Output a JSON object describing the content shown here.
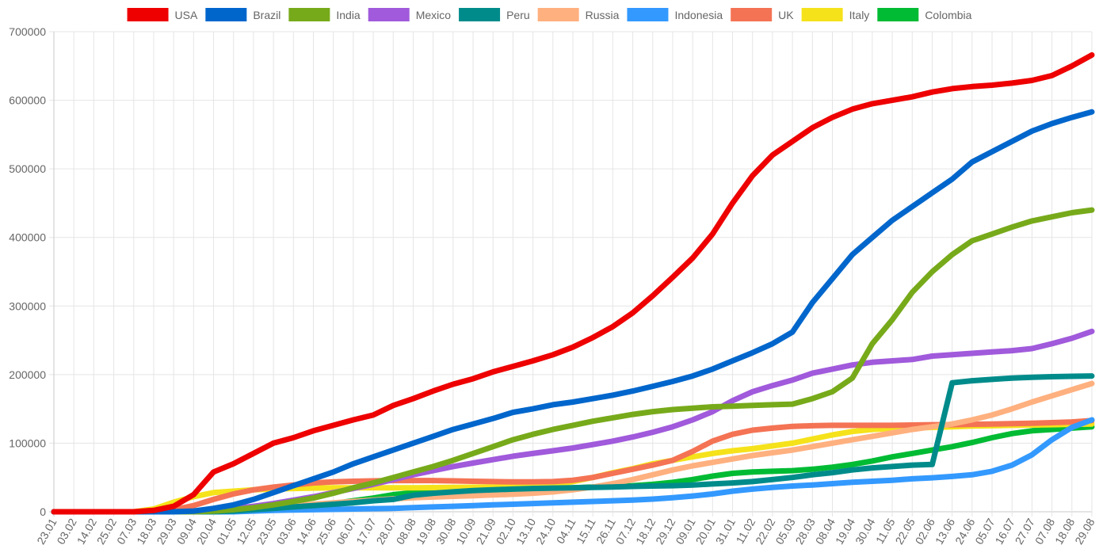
{
  "chart_data": {
    "type": "line",
    "title": "",
    "xlabel": "",
    "ylabel": "",
    "ylim": [
      0,
      700000
    ],
    "yticks": [
      0,
      100000,
      200000,
      300000,
      400000,
      500000,
      600000,
      700000
    ],
    "grid": true,
    "legend_position": "top",
    "x_tick_labels": [
      "23.01",
      "03.02",
      "14.02",
      "25.02",
      "07.03",
      "18.03",
      "29.03",
      "09.04",
      "20.04",
      "01.05",
      "12.05",
      "23.05",
      "03.06",
      "14.06",
      "25.06",
      "06.07",
      "17.07",
      "28.07",
      "08.08",
      "19.08",
      "30.08",
      "10.09",
      "21.09",
      "02.10",
      "13.10",
      "24.10",
      "04.11",
      "15.11",
      "26.11",
      "07.12",
      "18.12",
      "29.12",
      "09.01",
      "20.01",
      "31.01",
      "11.02",
      "22.02",
      "05.03",
      "28.03",
      "08.04",
      "19.04",
      "30.04",
      "11.05",
      "22.05",
      "02.06",
      "13.06",
      "24.06",
      "05.07",
      "16.07",
      "27.07",
      "07.08",
      "18.08",
      "29.08"
    ],
    "series": [
      {
        "name": "USA",
        "color": "#ee0000",
        "values": [
          0,
          0,
          0,
          0,
          0,
          2000,
          8000,
          25000,
          58000,
          70000,
          85000,
          100000,
          108000,
          118000,
          126000,
          134000,
          141000,
          155000,
          165000,
          176000,
          186000,
          194000,
          204000,
          212000,
          220000,
          229000,
          240000,
          254000,
          270000,
          290000,
          315000,
          342000,
          370000,
          405000,
          450000,
          490000,
          520000,
          540000,
          560000,
          575000,
          587000,
          595000,
          600000,
          605000,
          612000,
          617000,
          620000,
          622000,
          625000,
          629000,
          636000,
          650000,
          666000
        ]
      },
      {
        "name": "Brazil",
        "color": "#0066cc",
        "values": [
          0,
          0,
          0,
          0,
          0,
          0,
          0,
          1000,
          5000,
          10000,
          18000,
          28000,
          38000,
          48000,
          58000,
          70000,
          80000,
          90000,
          100000,
          110000,
          120000,
          128000,
          136000,
          145000,
          150000,
          156000,
          160000,
          165000,
          170000,
          176000,
          183000,
          190000,
          198000,
          208000,
          220000,
          232000,
          245000,
          262000,
          305000,
          340000,
          375000,
          400000,
          425000,
          445000,
          465000,
          485000,
          510000,
          525000,
          540000,
          555000,
          566000,
          575000,
          583000
        ]
      },
      {
        "name": "India",
        "color": "#77aa1a",
        "values": [
          0,
          0,
          0,
          0,
          0,
          0,
          0,
          0,
          1000,
          3000,
          6000,
          10000,
          15000,
          20000,
          27000,
          35000,
          42000,
          50000,
          58000,
          66000,
          75000,
          85000,
          95000,
          105000,
          113000,
          120000,
          126000,
          132000,
          137000,
          142000,
          146000,
          149000,
          151000,
          153000,
          154000,
          155000,
          156000,
          157000,
          165000,
          175000,
          195000,
          245000,
          280000,
          320000,
          350000,
          375000,
          395000,
          405000,
          415000,
          424000,
          430000,
          436000,
          440000
        ]
      },
      {
        "name": "Mexico",
        "color": "#a05adb",
        "values": [
          0,
          0,
          0,
          0,
          0,
          0,
          0,
          0,
          2000,
          5000,
          8000,
          12000,
          17000,
          22000,
          28000,
          34000,
          40000,
          47000,
          54000,
          60000,
          66000,
          71000,
          76000,
          81000,
          85000,
          89000,
          93000,
          98000,
          103000,
          109000,
          116000,
          124000,
          134000,
          146000,
          162000,
          175000,
          184000,
          192000,
          202000,
          208000,
          214000,
          218000,
          220000,
          222000,
          227000,
          229000,
          231000,
          233000,
          235000,
          238000,
          245000,
          253000,
          263000
        ]
      },
      {
        "name": "Peru",
        "color": "#008b8b",
        "values": [
          0,
          0,
          0,
          0,
          0,
          0,
          0,
          0,
          0,
          1000,
          3000,
          5000,
          7000,
          9000,
          11000,
          13000,
          16000,
          18000,
          24000,
          27000,
          29000,
          31000,
          32000,
          33000,
          34000,
          34500,
          35000,
          35500,
          36000,
          37000,
          37500,
          38000,
          39000,
          40500,
          42000,
          44000,
          47000,
          50000,
          54000,
          57000,
          61000,
          64000,
          66000,
          68000,
          69000,
          188000,
          191000,
          193000,
          195000,
          196000,
          197000,
          197500,
          198000
        ]
      },
      {
        "name": "Russia",
        "color": "#ffb07f",
        "values": [
          0,
          0,
          0,
          0,
          0,
          0,
          0,
          0,
          1000,
          2000,
          4000,
          6000,
          8000,
          11000,
          13000,
          15000,
          17000,
          19000,
          20500,
          21500,
          22500,
          23500,
          24500,
          25500,
          27000,
          29000,
          32000,
          36000,
          41000,
          47000,
          54000,
          61000,
          67000,
          72000,
          77000,
          82000,
          86000,
          90000,
          95000,
          100000,
          105000,
          110000,
          115000,
          120000,
          124000,
          128000,
          134000,
          141000,
          150000,
          160000,
          169000,
          178000,
          187000
        ]
      },
      {
        "name": "Indonesia",
        "color": "#3399ff",
        "values": [
          0,
          0,
          0,
          0,
          0,
          0,
          0,
          0,
          0,
          0,
          1000,
          2000,
          2500,
          3000,
          3500,
          4000,
          4500,
          5000,
          6000,
          7000,
          8000,
          9000,
          10000,
          11000,
          12000,
          13000,
          14000,
          15000,
          16000,
          17000,
          18500,
          20500,
          23000,
          26000,
          30000,
          33000,
          35500,
          37500,
          39000,
          41000,
          43000,
          44500,
          46000,
          48000,
          49500,
          51500,
          54000,
          59000,
          68000,
          83000,
          105000,
          123000,
          134000
        ]
      },
      {
        "name": "UK",
        "color": "#f47354",
        "values": [
          0,
          0,
          0,
          0,
          0,
          0,
          3000,
          9000,
          18000,
          26000,
          32000,
          36000,
          39000,
          42000,
          43500,
          44500,
          45000,
          45500,
          45500,
          45500,
          45000,
          44500,
          44000,
          43500,
          43500,
          44000,
          46000,
          50000,
          56000,
          62000,
          68000,
          75000,
          88000,
          103000,
          113000,
          119000,
          122000,
          124500,
          125500,
          126000,
          126000,
          126000,
          126000,
          126500,
          127000,
          127000,
          127500,
          128000,
          128500,
          129000,
          130000,
          131000,
          133000
        ]
      },
      {
        "name": "Italy",
        "color": "#f5e21b",
        "values": [
          0,
          0,
          0,
          0,
          0,
          4000,
          14000,
          22000,
          28000,
          30000,
          32000,
          33000,
          34000,
          34500,
          35000,
          35000,
          35000,
          35000,
          35000,
          35200,
          35500,
          35800,
          36000,
          36200,
          37000,
          39000,
          44000,
          50000,
          57000,
          63000,
          70000,
          75000,
          80000,
          85000,
          89000,
          92000,
          96000,
          100000,
          106000,
          112000,
          117000,
          120000,
          121500,
          122000,
          123000,
          124000,
          125000,
          125500,
          126000,
          126500,
          127000,
          127500,
          128000
        ]
      },
      {
        "name": "Colombia",
        "color": "#00bb33",
        "values": [
          0,
          0,
          0,
          0,
          0,
          0,
          0,
          0,
          0,
          1000,
          2000,
          3000,
          5000,
          8000,
          12000,
          16000,
          20000,
          25000,
          28000,
          29000,
          30000,
          31000,
          32000,
          33000,
          33500,
          34000,
          35000,
          36000,
          37000,
          38000,
          40000,
          43000,
          47000,
          52000,
          56000,
          58000,
          59000,
          60000,
          62000,
          65000,
          69000,
          74000,
          80000,
          85000,
          90000,
          95000,
          101000,
          108000,
          114000,
          118000,
          120000,
          122000,
          124000
        ]
      }
    ]
  }
}
